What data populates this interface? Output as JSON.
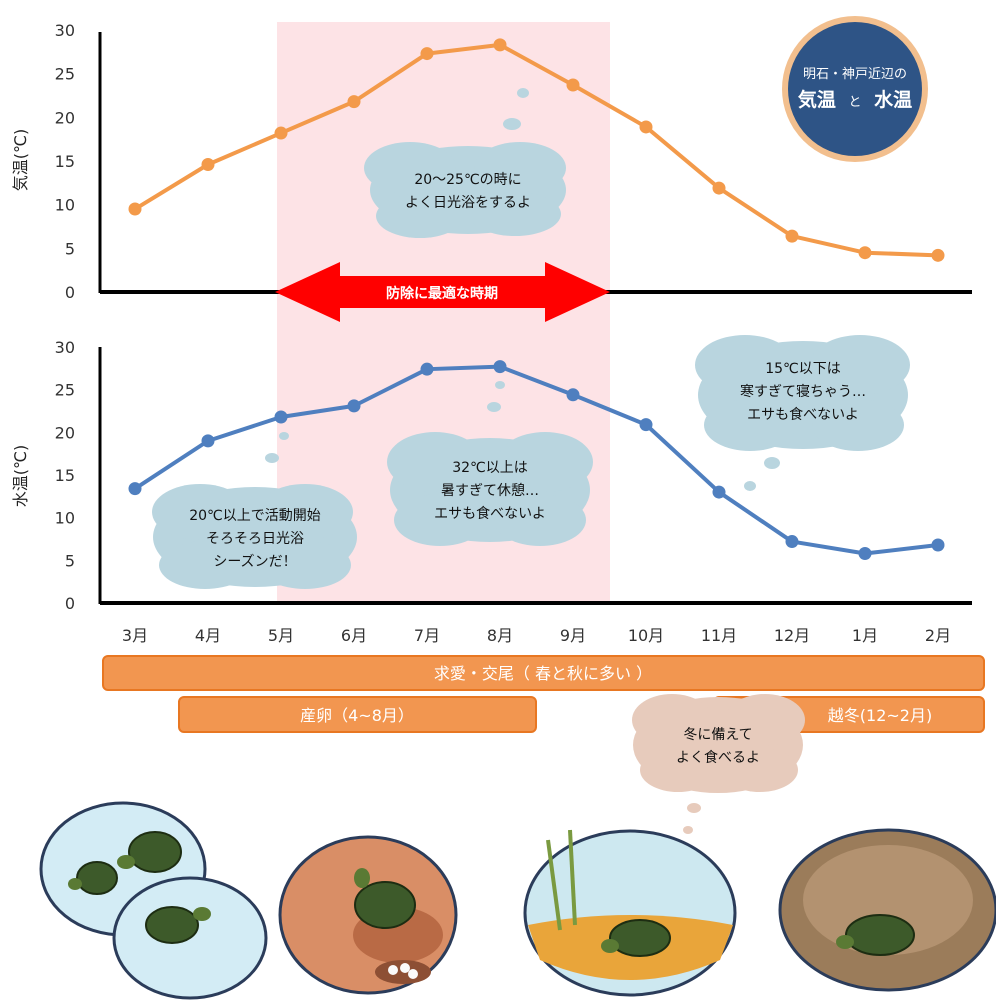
{
  "badge": {
    "line1": "明石・神戸近辺の",
    "word_air": "気温",
    "conj": "と",
    "word_water": "水温"
  },
  "banner": "防除に最適な時期",
  "bubbles": {
    "bask": [
      "20〜25℃の時に",
      "よく日光浴をするよ"
    ],
    "hot": [
      "32℃以上は",
      "暑すぎて休憩…",
      "エサも食べないよ"
    ],
    "cold": [
      "15℃以下は",
      "寒すぎて寝ちゃう…",
      "エサも食べないよ"
    ],
    "active": [
      "20℃以上で活動開始",
      "そろそろ日光浴",
      "シーズンだ！"
    ],
    "winter": [
      "冬に備えて",
      "よく食べるよ"
    ]
  },
  "bars": {
    "courtship": "求愛・交尾（ 春と秋に多い ）",
    "spawning": "産卵（4~8月）",
    "wintering": "越冬(12~2月)"
  },
  "colors": {
    "air": "#f39a4a",
    "water": "#4f7fbf",
    "highlight": "#fde3e6",
    "badge": "#2e5486",
    "bar": "#f29650",
    "bubble": "#b9d5df",
    "bubble_warm": "#e7cbbc",
    "arrow": "#ff0000"
  },
  "chart_data": [
    {
      "type": "line",
      "categories": [
        "3月",
        "4月",
        "5月",
        "6月",
        "7月",
        "8月",
        "9月",
        "10月",
        "11月",
        "12月",
        "1月",
        "2月"
      ],
      "series": [
        {
          "name": "気温",
          "values": [
            9.5,
            14.6,
            18.2,
            21.8,
            27.3,
            28.3,
            23.7,
            18.9,
            11.9,
            6.4,
            4.5,
            4.2
          ]
        }
      ],
      "ylabel": "気温(℃)",
      "ylim": [
        0,
        30
      ],
      "yticks": [
        "0",
        "5",
        "10",
        "15",
        "20",
        "25",
        "30"
      ],
      "highlight_range": [
        "5月",
        "9月"
      ]
    },
    {
      "type": "line",
      "categories": [
        "3月",
        "4月",
        "5月",
        "6月",
        "7月",
        "8月",
        "9月",
        "10月",
        "11月",
        "12月",
        "1月",
        "2月"
      ],
      "series": [
        {
          "name": "水温",
          "values": [
            13.4,
            19.0,
            21.8,
            23.1,
            27.4,
            27.7,
            24.4,
            20.9,
            13.0,
            7.2,
            5.8,
            6.8
          ]
        }
      ],
      "ylabel": "水温(℃)",
      "ylim": [
        0,
        30
      ],
      "yticks": [
        "0",
        "5",
        "10",
        "15",
        "20",
        "25",
        "30"
      ],
      "highlight_range": [
        "5月",
        "9月"
      ]
    }
  ]
}
